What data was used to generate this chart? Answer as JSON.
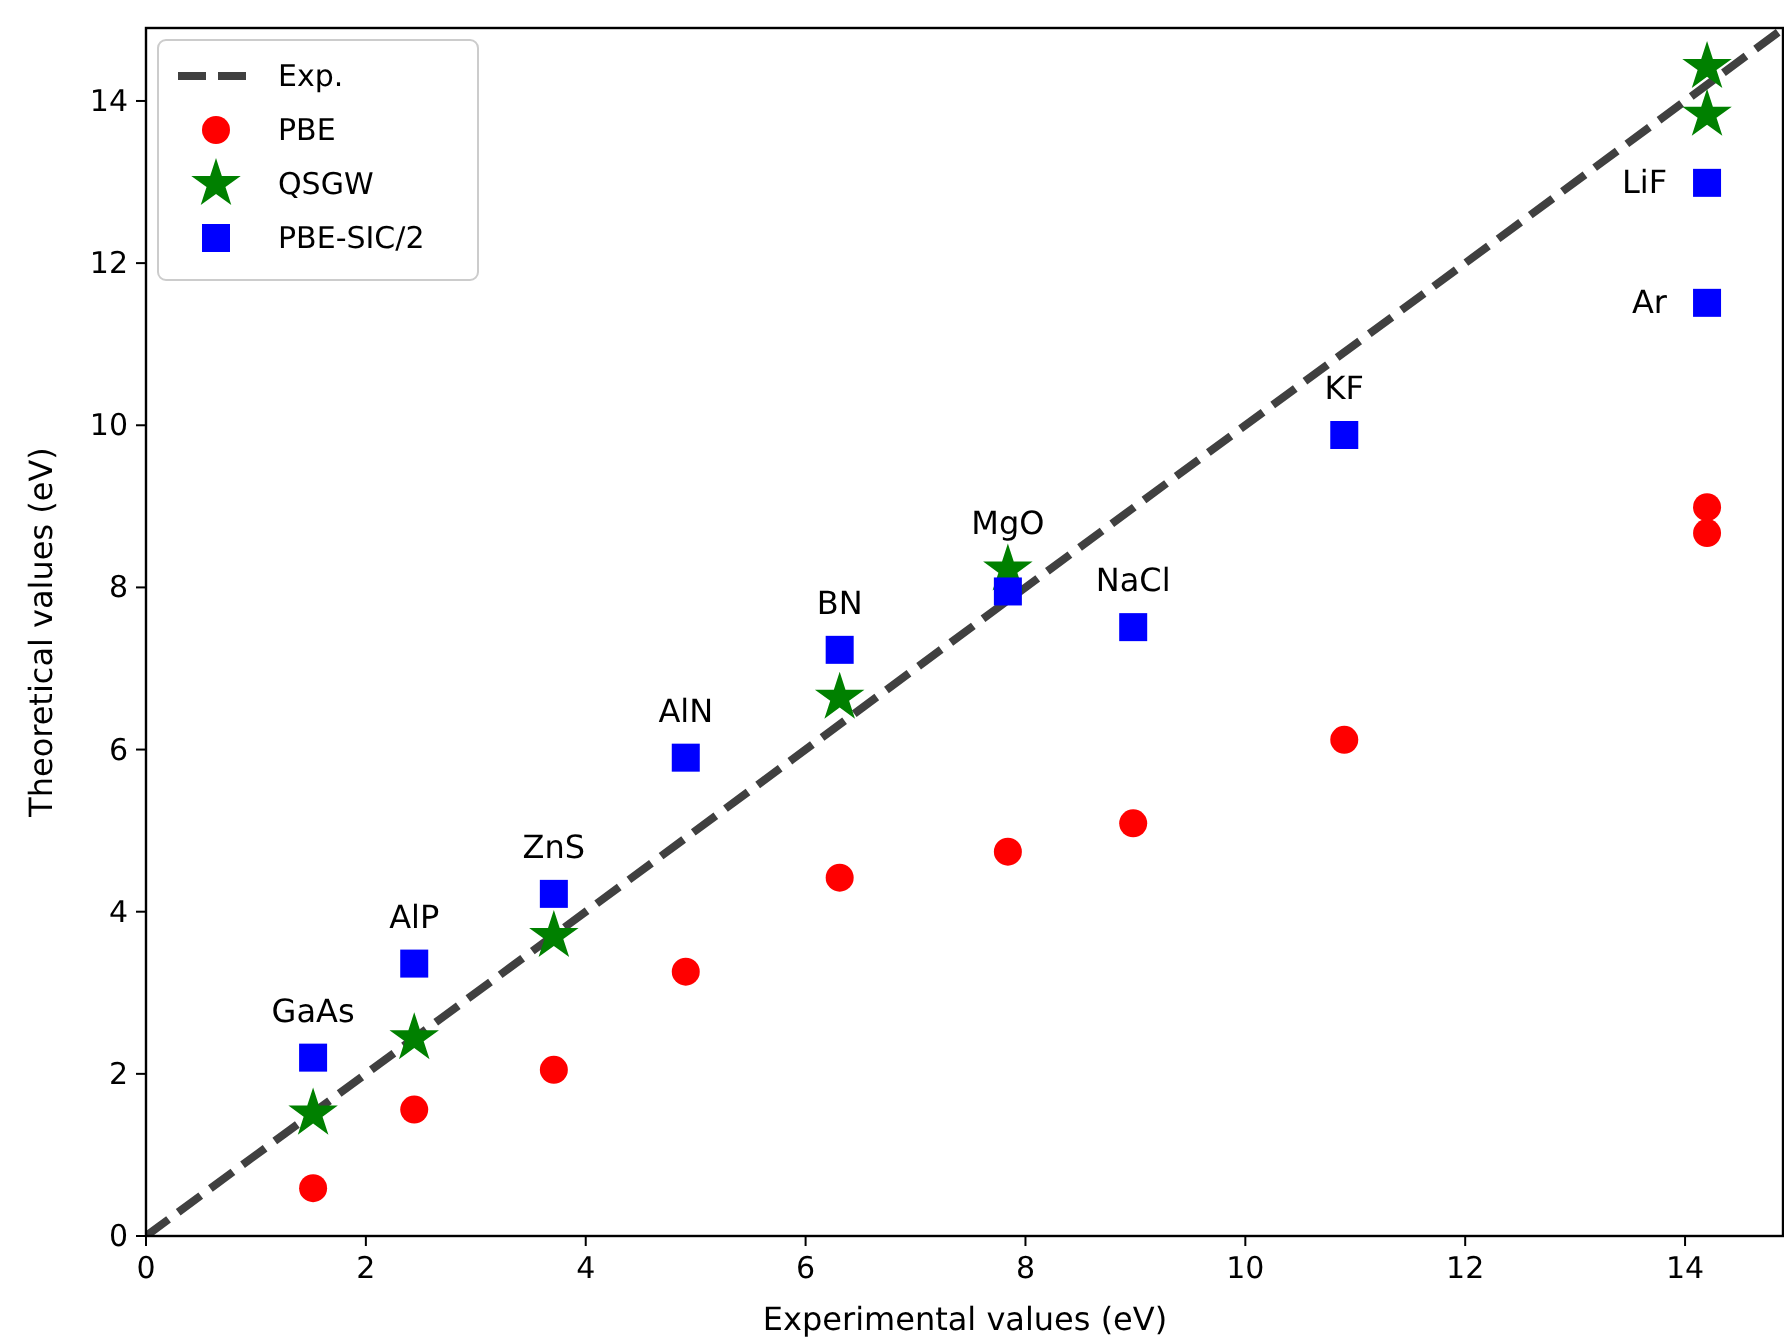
{
  "chart_data": {
    "type": "scatter",
    "xlabel": "Experimental values (eV)",
    "ylabel": "Theoretical values (eV)",
    "xlim": [
      0,
      14.9
    ],
    "ylim": [
      0,
      14.9
    ],
    "xticks": [
      0,
      2,
      4,
      6,
      8,
      10,
      12,
      14
    ],
    "yticks": [
      0,
      2,
      4,
      6,
      8,
      10,
      12,
      14
    ],
    "grid": false,
    "legend": "top left",
    "series": [
      {
        "name": "Exp.",
        "type": "line",
        "line_style": "dashed",
        "marker": "none",
        "color": "#404040",
        "x": [
          0,
          14.9
        ],
        "values": [
          0,
          14.9
        ]
      },
      {
        "name": "PBE",
        "marker": "circle",
        "color": "#ff0000",
        "x": [
          1.52,
          2.44,
          3.71,
          4.91,
          6.31,
          7.84,
          8.98,
          10.9,
          14.2,
          14.2
        ],
        "values": [
          0.59,
          1.56,
          2.05,
          3.26,
          4.42,
          4.74,
          5.09,
          6.12,
          8.99,
          8.67
        ]
      },
      {
        "name": "QSGW",
        "marker": "star",
        "color": "#008000",
        "x": [
          1.52,
          2.44,
          3.71,
          6.31,
          7.84,
          14.2,
          14.2
        ],
        "values": [
          1.51,
          2.44,
          3.7,
          6.64,
          8.22,
          14.42,
          13.83
        ]
      },
      {
        "name": "PBE-SIC/2",
        "marker": "square",
        "color": "#0000ff",
        "x": [
          1.52,
          2.44,
          3.71,
          4.91,
          6.31,
          7.84,
          8.98,
          10.9,
          14.2,
          14.2
        ],
        "values": [
          2.2,
          3.36,
          4.22,
          5.9,
          7.23,
          7.95,
          7.51,
          9.88,
          12.99,
          11.51
        ]
      }
    ],
    "annotations": [
      {
        "text": "GaAs",
        "x": 1.52,
        "y": 2.2
      },
      {
        "text": "AlP",
        "x": 2.44,
        "y": 3.36
      },
      {
        "text": "ZnS",
        "x": 3.71,
        "y": 4.22
      },
      {
        "text": "AlN",
        "x": 4.91,
        "y": 5.9
      },
      {
        "text": "BN",
        "x": 6.31,
        "y": 7.23
      },
      {
        "text": "MgO",
        "x": 7.84,
        "y": 8.22
      },
      {
        "text": "NaCl",
        "x": 8.98,
        "y": 7.51
      },
      {
        "text": "KF",
        "x": 10.9,
        "y": 9.88
      },
      {
        "text": "LiF",
        "x": 14.2,
        "y": 12.99
      },
      {
        "text": "Ar",
        "x": 14.2,
        "y": 11.51
      }
    ]
  }
}
